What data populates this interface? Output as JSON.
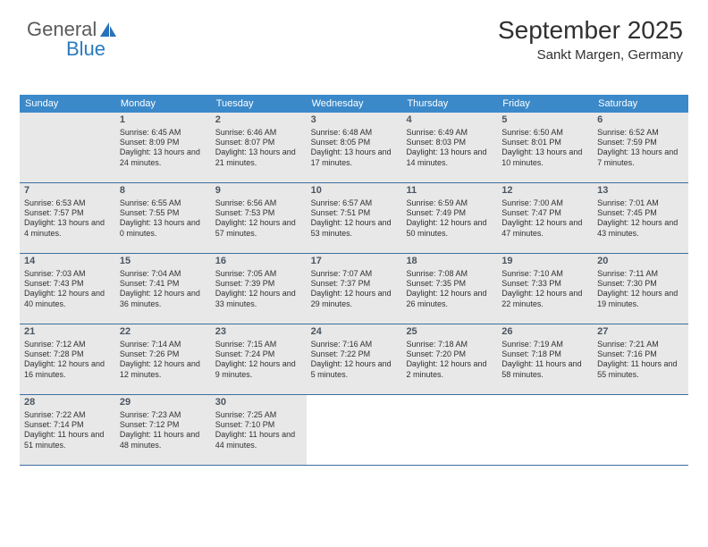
{
  "logo": {
    "text1": "General",
    "text2": "Blue"
  },
  "title": "September 2025",
  "subtitle": "Sankt Margen, Germany",
  "colors": {
    "header_bar": "#3b89c9",
    "week_border": "#3b6fa0",
    "shade_bg": "#e8e8e8",
    "page_bg": "#ffffff",
    "logo_blue": "#2b7bbf",
    "logo_gray": "#5a5a5a"
  },
  "day_names": [
    "Sunday",
    "Monday",
    "Tuesday",
    "Wednesday",
    "Thursday",
    "Friday",
    "Saturday"
  ],
  "weeks": [
    [
      {
        "blank": true,
        "shade": true
      },
      {
        "num": "1",
        "shade": true,
        "sunrise": "6:45 AM",
        "sunset": "8:09 PM",
        "daylight": "13 hours and 24 minutes."
      },
      {
        "num": "2",
        "shade": true,
        "sunrise": "6:46 AM",
        "sunset": "8:07 PM",
        "daylight": "13 hours and 21 minutes."
      },
      {
        "num": "3",
        "shade": true,
        "sunrise": "6:48 AM",
        "sunset": "8:05 PM",
        "daylight": "13 hours and 17 minutes."
      },
      {
        "num": "4",
        "shade": true,
        "sunrise": "6:49 AM",
        "sunset": "8:03 PM",
        "daylight": "13 hours and 14 minutes."
      },
      {
        "num": "5",
        "shade": true,
        "sunrise": "6:50 AM",
        "sunset": "8:01 PM",
        "daylight": "13 hours and 10 minutes."
      },
      {
        "num": "6",
        "shade": true,
        "sunrise": "6:52 AM",
        "sunset": "7:59 PM",
        "daylight": "13 hours and 7 minutes."
      }
    ],
    [
      {
        "num": "7",
        "shade": true,
        "sunrise": "6:53 AM",
        "sunset": "7:57 PM",
        "daylight": "13 hours and 4 minutes."
      },
      {
        "num": "8",
        "shade": true,
        "sunrise": "6:55 AM",
        "sunset": "7:55 PM",
        "daylight": "13 hours and 0 minutes."
      },
      {
        "num": "9",
        "shade": true,
        "sunrise": "6:56 AM",
        "sunset": "7:53 PM",
        "daylight": "12 hours and 57 minutes."
      },
      {
        "num": "10",
        "shade": true,
        "sunrise": "6:57 AM",
        "sunset": "7:51 PM",
        "daylight": "12 hours and 53 minutes."
      },
      {
        "num": "11",
        "shade": true,
        "sunrise": "6:59 AM",
        "sunset": "7:49 PM",
        "daylight": "12 hours and 50 minutes."
      },
      {
        "num": "12",
        "shade": true,
        "sunrise": "7:00 AM",
        "sunset": "7:47 PM",
        "daylight": "12 hours and 47 minutes."
      },
      {
        "num": "13",
        "shade": true,
        "sunrise": "7:01 AM",
        "sunset": "7:45 PM",
        "daylight": "12 hours and 43 minutes."
      }
    ],
    [
      {
        "num": "14",
        "shade": true,
        "sunrise": "7:03 AM",
        "sunset": "7:43 PM",
        "daylight": "12 hours and 40 minutes."
      },
      {
        "num": "15",
        "shade": true,
        "sunrise": "7:04 AM",
        "sunset": "7:41 PM",
        "daylight": "12 hours and 36 minutes."
      },
      {
        "num": "16",
        "shade": true,
        "sunrise": "7:05 AM",
        "sunset": "7:39 PM",
        "daylight": "12 hours and 33 minutes."
      },
      {
        "num": "17",
        "shade": true,
        "sunrise": "7:07 AM",
        "sunset": "7:37 PM",
        "daylight": "12 hours and 29 minutes."
      },
      {
        "num": "18",
        "shade": true,
        "sunrise": "7:08 AM",
        "sunset": "7:35 PM",
        "daylight": "12 hours and 26 minutes."
      },
      {
        "num": "19",
        "shade": true,
        "sunrise": "7:10 AM",
        "sunset": "7:33 PM",
        "daylight": "12 hours and 22 minutes."
      },
      {
        "num": "20",
        "shade": true,
        "sunrise": "7:11 AM",
        "sunset": "7:30 PM",
        "daylight": "12 hours and 19 minutes."
      }
    ],
    [
      {
        "num": "21",
        "shade": true,
        "sunrise": "7:12 AM",
        "sunset": "7:28 PM",
        "daylight": "12 hours and 16 minutes."
      },
      {
        "num": "22",
        "shade": true,
        "sunrise": "7:14 AM",
        "sunset": "7:26 PM",
        "daylight": "12 hours and 12 minutes."
      },
      {
        "num": "23",
        "shade": true,
        "sunrise": "7:15 AM",
        "sunset": "7:24 PM",
        "daylight": "12 hours and 9 minutes."
      },
      {
        "num": "24",
        "shade": true,
        "sunrise": "7:16 AM",
        "sunset": "7:22 PM",
        "daylight": "12 hours and 5 minutes."
      },
      {
        "num": "25",
        "shade": true,
        "sunrise": "7:18 AM",
        "sunset": "7:20 PM",
        "daylight": "12 hours and 2 minutes."
      },
      {
        "num": "26",
        "shade": true,
        "sunrise": "7:19 AM",
        "sunset": "7:18 PM",
        "daylight": "11 hours and 58 minutes."
      },
      {
        "num": "27",
        "shade": true,
        "sunrise": "7:21 AM",
        "sunset": "7:16 PM",
        "daylight": "11 hours and 55 minutes."
      }
    ],
    [
      {
        "num": "28",
        "shade": true,
        "sunrise": "7:22 AM",
        "sunset": "7:14 PM",
        "daylight": "11 hours and 51 minutes."
      },
      {
        "num": "29",
        "shade": true,
        "sunrise": "7:23 AM",
        "sunset": "7:12 PM",
        "daylight": "11 hours and 48 minutes."
      },
      {
        "num": "30",
        "shade": true,
        "sunrise": "7:25 AM",
        "sunset": "7:10 PM",
        "daylight": "11 hours and 44 minutes."
      },
      {
        "blank": true
      },
      {
        "blank": true
      },
      {
        "blank": true
      },
      {
        "blank": true
      }
    ]
  ],
  "labels": {
    "sunrise_prefix": "Sunrise: ",
    "sunset_prefix": "Sunset: ",
    "daylight_prefix": "Daylight: "
  }
}
